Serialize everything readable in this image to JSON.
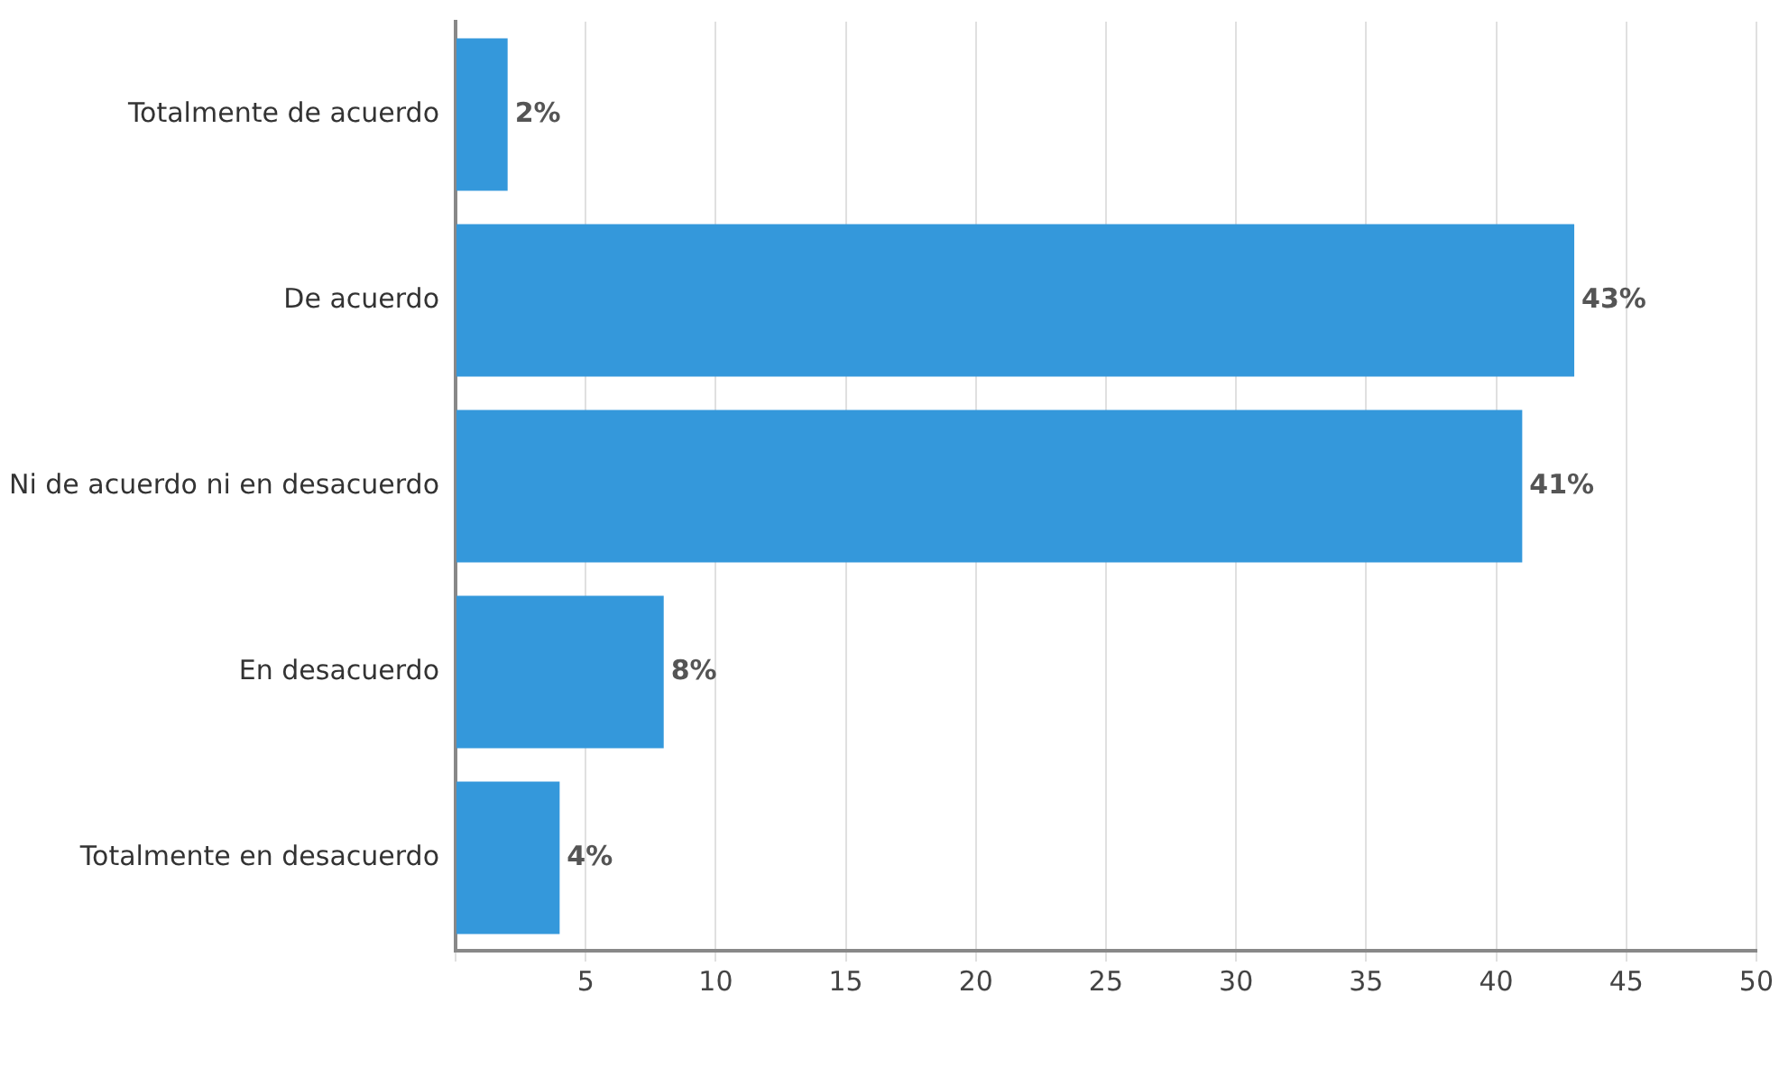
{
  "chart_data": {
    "type": "bar",
    "orientation": "horizontal",
    "categories": [
      "Totalmente de acuerdo",
      "De acuerdo",
      "Ni de acuerdo ni en desacuerdo",
      "En desacuerdo",
      "Totalmente en desacuerdo"
    ],
    "values": [
      2,
      43,
      41,
      8,
      4
    ],
    "color": "#3498db",
    "value_labels": [
      "2%",
      "43%",
      "41%",
      "8%",
      "4%"
    ],
    "xlim": [
      0,
      50
    ],
    "xticks": [
      {
        "value": 0,
        "label": null
      },
      5,
      10,
      15,
      20,
      25,
      30,
      35,
      40,
      45,
      50
    ],
    "grid": "x",
    "legend": false
  }
}
